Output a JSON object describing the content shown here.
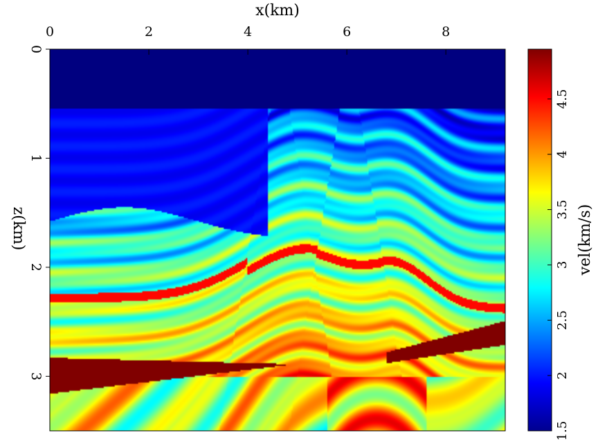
{
  "chart_data": {
    "type": "heatmap",
    "title": "",
    "xlabel": "x(km)",
    "ylabel": "z(km)",
    "xlim": [
      0,
      9.2
    ],
    "ylim": [
      0,
      3.5
    ],
    "x_ticks": [
      "0",
      "2",
      "4",
      "6",
      "8"
    ],
    "x_tick_values": [
      0,
      2,
      4,
      6,
      8
    ],
    "y_ticks": [
      "0",
      "1",
      "2",
      "3"
    ],
    "y_tick_values": [
      0,
      1,
      2,
      3
    ],
    "x_axis_position": "top",
    "colorbar": {
      "label": "vel(km/s)",
      "range": [
        1.5,
        4.95
      ],
      "ticks": [
        "1.5",
        "2",
        "2.5",
        "3",
        "3.5",
        "4",
        "4.5"
      ],
      "tick_values": [
        1.5,
        2,
        2.5,
        3,
        3.5,
        4,
        4.5
      ],
      "colormap": "jet",
      "position": "right"
    },
    "model": {
      "water_velocity": 1.5,
      "water_bottom_depth": 0.55,
      "salt_velocity": 4.95,
      "background_velocity_range": [
        2.0,
        4.6
      ],
      "fault_x": [
        4.3,
        5.0,
        5.7,
        6.4
      ]
    }
  }
}
